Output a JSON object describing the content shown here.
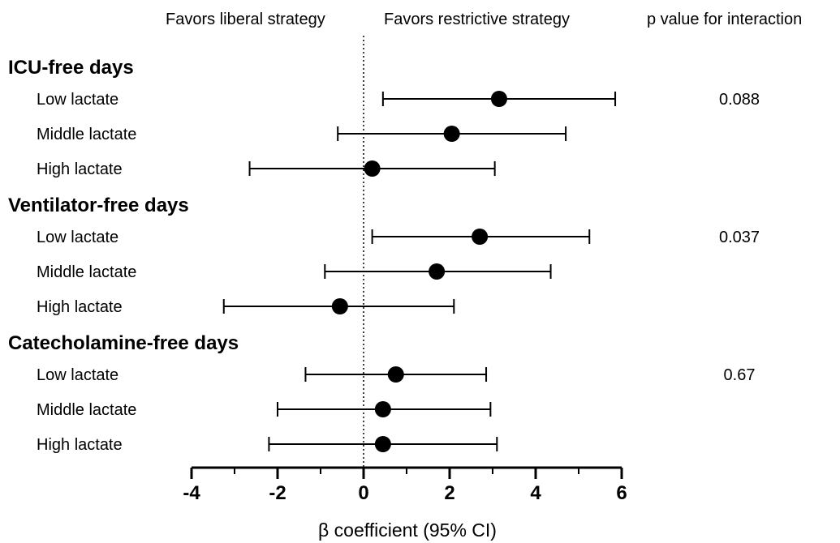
{
  "chart_data": {
    "type": "forest",
    "header_left": "Favors liberal strategy",
    "header_right": "Favors restrictive strategy",
    "header_p": "p value for interaction",
    "xlabel": "β coefficient (95% CI)",
    "xlim": [
      -4,
      6
    ],
    "xticks": [
      -4,
      -2,
      0,
      2,
      4,
      6
    ],
    "reference_line": 0,
    "groups": [
      {
        "name": "ICU-free days",
        "p_value": "0.088",
        "rows": [
          {
            "label": "Low lactate",
            "estimate": 3.15,
            "lower": 0.45,
            "upper": 5.85
          },
          {
            "label": "Middle lactate",
            "estimate": 2.05,
            "lower": -0.6,
            "upper": 4.7
          },
          {
            "label": "High lactate",
            "estimate": 0.2,
            "lower": -2.65,
            "upper": 3.05
          }
        ]
      },
      {
        "name": "Ventilator-free days",
        "p_value": "0.037",
        "rows": [
          {
            "label": "Low lactate",
            "estimate": 2.7,
            "lower": 0.2,
            "upper": 5.25
          },
          {
            "label": "Middle lactate",
            "estimate": 1.7,
            "lower": -0.9,
            "upper": 4.35
          },
          {
            "label": "High lactate",
            "estimate": -0.55,
            "lower": -3.25,
            "upper": 2.1
          }
        ]
      },
      {
        "name": "Catecholamine-free days",
        "p_value": "0.67",
        "rows": [
          {
            "label": "Low lactate",
            "estimate": 0.75,
            "lower": -1.35,
            "upper": 2.85
          },
          {
            "label": "Middle lactate",
            "estimate": 0.45,
            "lower": -2.0,
            "upper": 2.95
          },
          {
            "label": "High lactate",
            "estimate": 0.45,
            "lower": -2.2,
            "upper": 3.1
          }
        ]
      }
    ]
  }
}
